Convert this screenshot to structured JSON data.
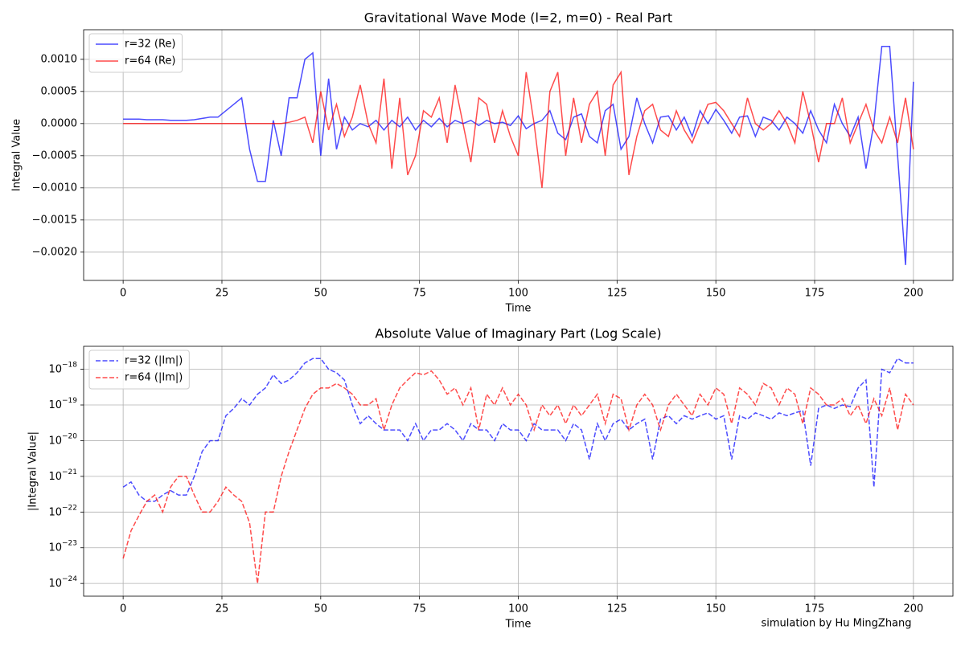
{
  "chart_data": [
    {
      "type": "line",
      "title": "Gravitational Wave Mode (l=2, m=0) - Real Part",
      "xlabel": "Time",
      "ylabel": "Integral Value",
      "x": [
        0,
        2,
        4,
        6,
        8,
        10,
        12,
        14,
        16,
        18,
        20,
        22,
        24,
        26,
        28,
        30,
        32,
        34,
        36,
        38,
        40,
        42,
        44,
        46,
        48,
        50,
        52,
        54,
        56,
        58,
        60,
        62,
        64,
        66,
        68,
        70,
        72,
        74,
        76,
        78,
        80,
        82,
        84,
        86,
        88,
        90,
        92,
        94,
        96,
        98,
        100,
        102,
        104,
        106,
        108,
        110,
        112,
        114,
        116,
        118,
        120,
        122,
        124,
        126,
        128,
        130,
        132,
        134,
        136,
        138,
        140,
        142,
        144,
        146,
        148,
        150,
        152,
        154,
        156,
        158,
        160,
        162,
        164,
        166,
        168,
        170,
        172,
        174,
        176,
        178,
        180,
        182,
        184,
        186,
        188,
        190,
        192,
        194,
        196,
        198,
        200
      ],
      "series": [
        {
          "name": "r=32 (Re)",
          "color": "blue",
          "alpha": 0.7,
          "linestyle": "solid",
          "values": [
            7e-05,
            7e-05,
            7e-05,
            6e-05,
            6e-05,
            6e-05,
            5e-05,
            5e-05,
            5e-05,
            6e-05,
            8e-05,
            0.0001,
            0.0001,
            0.0002,
            0.0003,
            0.0004,
            -0.0004,
            -0.0009,
            -0.0009,
            5e-05,
            -0.0005,
            0.0004,
            0.0004,
            0.001,
            0.0011,
            -0.0005,
            0.0007,
            -0.0004,
            0.0001,
            -0.0001,
            0,
            -5e-05,
            5e-05,
            -0.0001,
            5e-05,
            -5e-05,
            0.0001,
            -0.0001,
            5e-05,
            -5e-05,
            8e-05,
            -5e-05,
            5e-05,
            0,
            5e-05,
            -3e-05,
            5e-05,
            0,
            2e-05,
            -3e-05,
            0.00012,
            -8e-05,
            0,
            5e-05,
            0.0002,
            -0.00015,
            -0.00025,
            0.0001,
            0.00015,
            -0.0002,
            -0.0003,
            0.0002,
            0.0003,
            -0.0004,
            -0.0002,
            0.0004,
            0,
            -0.0003,
            0.0001,
            0.00012,
            -0.0001,
            0.0001,
            -0.0002,
            0.0002,
            0,
            0.00022,
            5e-05,
            -0.00015,
            0.0001,
            0.00012,
            -0.0002,
            0.0001,
            5e-05,
            -0.0001,
            0.0001,
            0,
            -0.00015,
            0.0002,
            -0.0001,
            -0.0003,
            0.0003,
            0,
            -0.0002,
            0.0001,
            -0.0007,
            0,
            0.0012,
            0.0012,
            -0.0005,
            -0.0022,
            0.00065
          ]
        },
        {
          "name": "r=64 (Re)",
          "color": "red",
          "alpha": 0.7,
          "linestyle": "solid",
          "values": [
            0,
            0,
            0,
            0,
            0,
            0,
            0,
            0,
            0,
            0,
            0,
            0,
            0,
            0,
            0,
            0,
            0,
            0,
            0,
            0,
            0,
            2e-05,
            5e-05,
            0.0001,
            -0.0003,
            0.0005,
            -0.0001,
            0.0003,
            -0.0002,
            0.0001,
            0.0006,
            0,
            -0.0003,
            0.0007,
            -0.0007,
            0.0004,
            -0.0008,
            -0.0005,
            0.0002,
            0.0001,
            0.0004,
            -0.0003,
            0.0006,
            0,
            -0.0006,
            0.0004,
            0.0003,
            -0.0003,
            0.0002,
            -0.0002,
            -0.0005,
            0.0008,
            0,
            -0.001,
            0.0005,
            0.0008,
            -0.0005,
            0.0004,
            -0.0003,
            0.0003,
            0.0005,
            -0.0005,
            0.0006,
            0.0008,
            -0.0008,
            -0.0002,
            0.0002,
            0.0003,
            -0.0001,
            -0.0002,
            0.0002,
            -0.0001,
            -0.0003,
            0,
            0.0003,
            0.00033,
            0.0002,
            0,
            -0.0002,
            0.0004,
            0,
            -0.0001,
            0,
            0.0002,
            0,
            -0.0003,
            0.0005,
            0,
            -0.0006,
            0,
            0,
            0.0004,
            -0.0003,
            0,
            0.0003,
            -0.0001,
            -0.0003,
            0.0001,
            -0.0003,
            0.0004,
            -0.0004
          ]
        }
      ],
      "xlim": [
        -10,
        210
      ],
      "xticks": [
        0,
        25,
        50,
        75,
        100,
        125,
        150,
        175,
        200
      ],
      "ylim": [
        -0.00244,
        0.00146
      ],
      "yticks": [
        {
          "value": -0.002,
          "label": "−0.0020"
        },
        {
          "value": -0.0015,
          "label": "−0.0015"
        },
        {
          "value": -0.001,
          "label": "−0.0010"
        },
        {
          "value": -0.0005,
          "label": "−0.0005"
        },
        {
          "value": 0,
          "label": "0.0000"
        },
        0.0005,
        {
          "value": 0.001,
          "label": "0.0010"
        }
      ],
      "yscale": "linear",
      "grid": true,
      "legend": "upper left"
    },
    {
      "type": "line",
      "title": "Absolute Value of Imaginary Part (Log Scale)",
      "xlabel": "Time",
      "ylabel": "|Integral Value|",
      "x": [
        0,
        2,
        4,
        6,
        8,
        10,
        12,
        14,
        16,
        18,
        20,
        22,
        24,
        26,
        28,
        30,
        32,
        34,
        36,
        38,
        40,
        42,
        44,
        46,
        48,
        50,
        52,
        54,
        56,
        58,
        60,
        62,
        64,
        66,
        68,
        70,
        72,
        74,
        76,
        78,
        80,
        82,
        84,
        86,
        88,
        90,
        92,
        94,
        96,
        98,
        100,
        102,
        104,
        106,
        108,
        110,
        112,
        114,
        116,
        118,
        120,
        122,
        124,
        126,
        128,
        130,
        132,
        134,
        136,
        138,
        140,
        142,
        144,
        146,
        148,
        150,
        152,
        154,
        156,
        158,
        160,
        162,
        164,
        166,
        168,
        170,
        172,
        174,
        176,
        178,
        180,
        182,
        184,
        186,
        188,
        190,
        192,
        194,
        196,
        198,
        200
      ],
      "series": [
        {
          "name": "r=32 (|Im|)",
          "color": "blue",
          "alpha": 0.7,
          "linestyle": "dashed",
          "values": [
            5e-22,
            7e-22,
            3e-22,
            2e-22,
            2e-22,
            3e-22,
            4e-22,
            3e-22,
            3e-22,
            1e-21,
            5e-21,
            1e-20,
            1e-20,
            5e-20,
            8e-20,
            1.5e-19,
            1e-19,
            2e-19,
            3e-19,
            7e-19,
            4e-19,
            5e-19,
            8e-19,
            1.5e-18,
            2e-18,
            2e-18,
            1e-18,
            8e-19,
            5e-19,
            1e-19,
            3e-20,
            5e-20,
            3e-20,
            2e-20,
            2e-20,
            2e-20,
            1e-20,
            3e-20,
            1e-20,
            2e-20,
            2e-20,
            3e-20,
            2e-20,
            1e-20,
            3e-20,
            2e-20,
            2e-20,
            1e-20,
            3e-20,
            2e-20,
            2e-20,
            1e-20,
            3e-20,
            2e-20,
            2e-20,
            2e-20,
            1e-20,
            3e-20,
            2e-20,
            3e-21,
            3e-20,
            1e-20,
            3e-20,
            4e-20,
            2e-20,
            3e-20,
            4e-20,
            3e-21,
            4e-20,
            5e-20,
            3e-20,
            5e-20,
            4e-20,
            5e-20,
            6e-20,
            4e-20,
            5e-20,
            3e-21,
            5e-20,
            4e-20,
            6e-20,
            5e-20,
            4e-20,
            6e-20,
            5e-20,
            6e-20,
            7e-20,
            2e-21,
            8e-20,
            1e-19,
            8e-20,
            1e-19,
            9e-20,
            3e-19,
            5e-19,
            5e-22,
            1e-18,
            8e-19,
            2e-18,
            1.5e-18,
            1.5e-18
          ]
        },
        {
          "name": "r=64 (|Im|)",
          "color": "red",
          "alpha": 0.7,
          "linestyle": "dashed",
          "values": [
            5e-24,
            3e-23,
            8e-23,
            2e-22,
            3e-22,
            1e-22,
            5e-22,
            1e-21,
            1e-21,
            3e-22,
            1e-22,
            1e-22,
            2e-22,
            5e-22,
            3e-22,
            2e-22,
            5e-23,
            1e-24,
            1e-22,
            1e-22,
            1e-21,
            5e-21,
            2e-20,
            8e-20,
            2e-19,
            3e-19,
            3e-19,
            4e-19,
            3e-19,
            2e-19,
            1e-19,
            1e-19,
            1.5e-19,
            2e-20,
            1e-19,
            3e-19,
            5e-19,
            8e-19,
            7e-19,
            9e-19,
            5e-19,
            2e-19,
            3e-19,
            1e-19,
            3e-19,
            2e-20,
            2e-19,
            1e-19,
            3e-19,
            1e-19,
            2e-19,
            1e-19,
            2e-20,
            1e-19,
            5e-20,
            1e-19,
            3e-20,
            1e-19,
            5e-20,
            1e-19,
            2e-19,
            3e-20,
            2e-19,
            1.5e-19,
            2e-20,
            1e-19,
            2e-19,
            1e-19,
            2e-20,
            1e-19,
            2e-19,
            1e-19,
            5e-20,
            2e-19,
            1e-19,
            3e-19,
            2e-19,
            3e-20,
            3e-19,
            2e-19,
            1e-19,
            4e-19,
            3e-19,
            1e-19,
            3e-19,
            2e-19,
            3e-20,
            3e-19,
            2e-19,
            1e-19,
            1e-19,
            1.5e-19,
            5e-20,
            1e-19,
            3e-20,
            1.5e-19,
            5e-20,
            3e-19,
            2e-20,
            2e-19,
            1e-19
          ]
        }
      ],
      "xlim": [
        -10,
        210
      ],
      "xticks": [
        0,
        25,
        50,
        75,
        100,
        125,
        150,
        175,
        200
      ],
      "ylim": [
        4.4e-25,
        4.4e-18
      ],
      "yticks": [
        {
          "value": 1e-24,
          "label": "10",
          "exponent": "−24"
        },
        {
          "value": 1e-23,
          "label": "10",
          "exponent": "−23"
        },
        {
          "value": 1e-22,
          "label": "10",
          "exponent": "−22"
        },
        {
          "value": 1e-21,
          "label": "10",
          "exponent": "−21"
        },
        {
          "value": 1e-20,
          "label": "10",
          "exponent": "−20"
        },
        {
          "value": 1e-19,
          "label": "10",
          "exponent": "−19"
        },
        {
          "value": 1e-18,
          "label": "10",
          "exponent": "−18"
        }
      ],
      "yscale": "log",
      "grid": true,
      "legend": "upper left",
      "annotation": "simulation by Hu MingZhang"
    }
  ]
}
